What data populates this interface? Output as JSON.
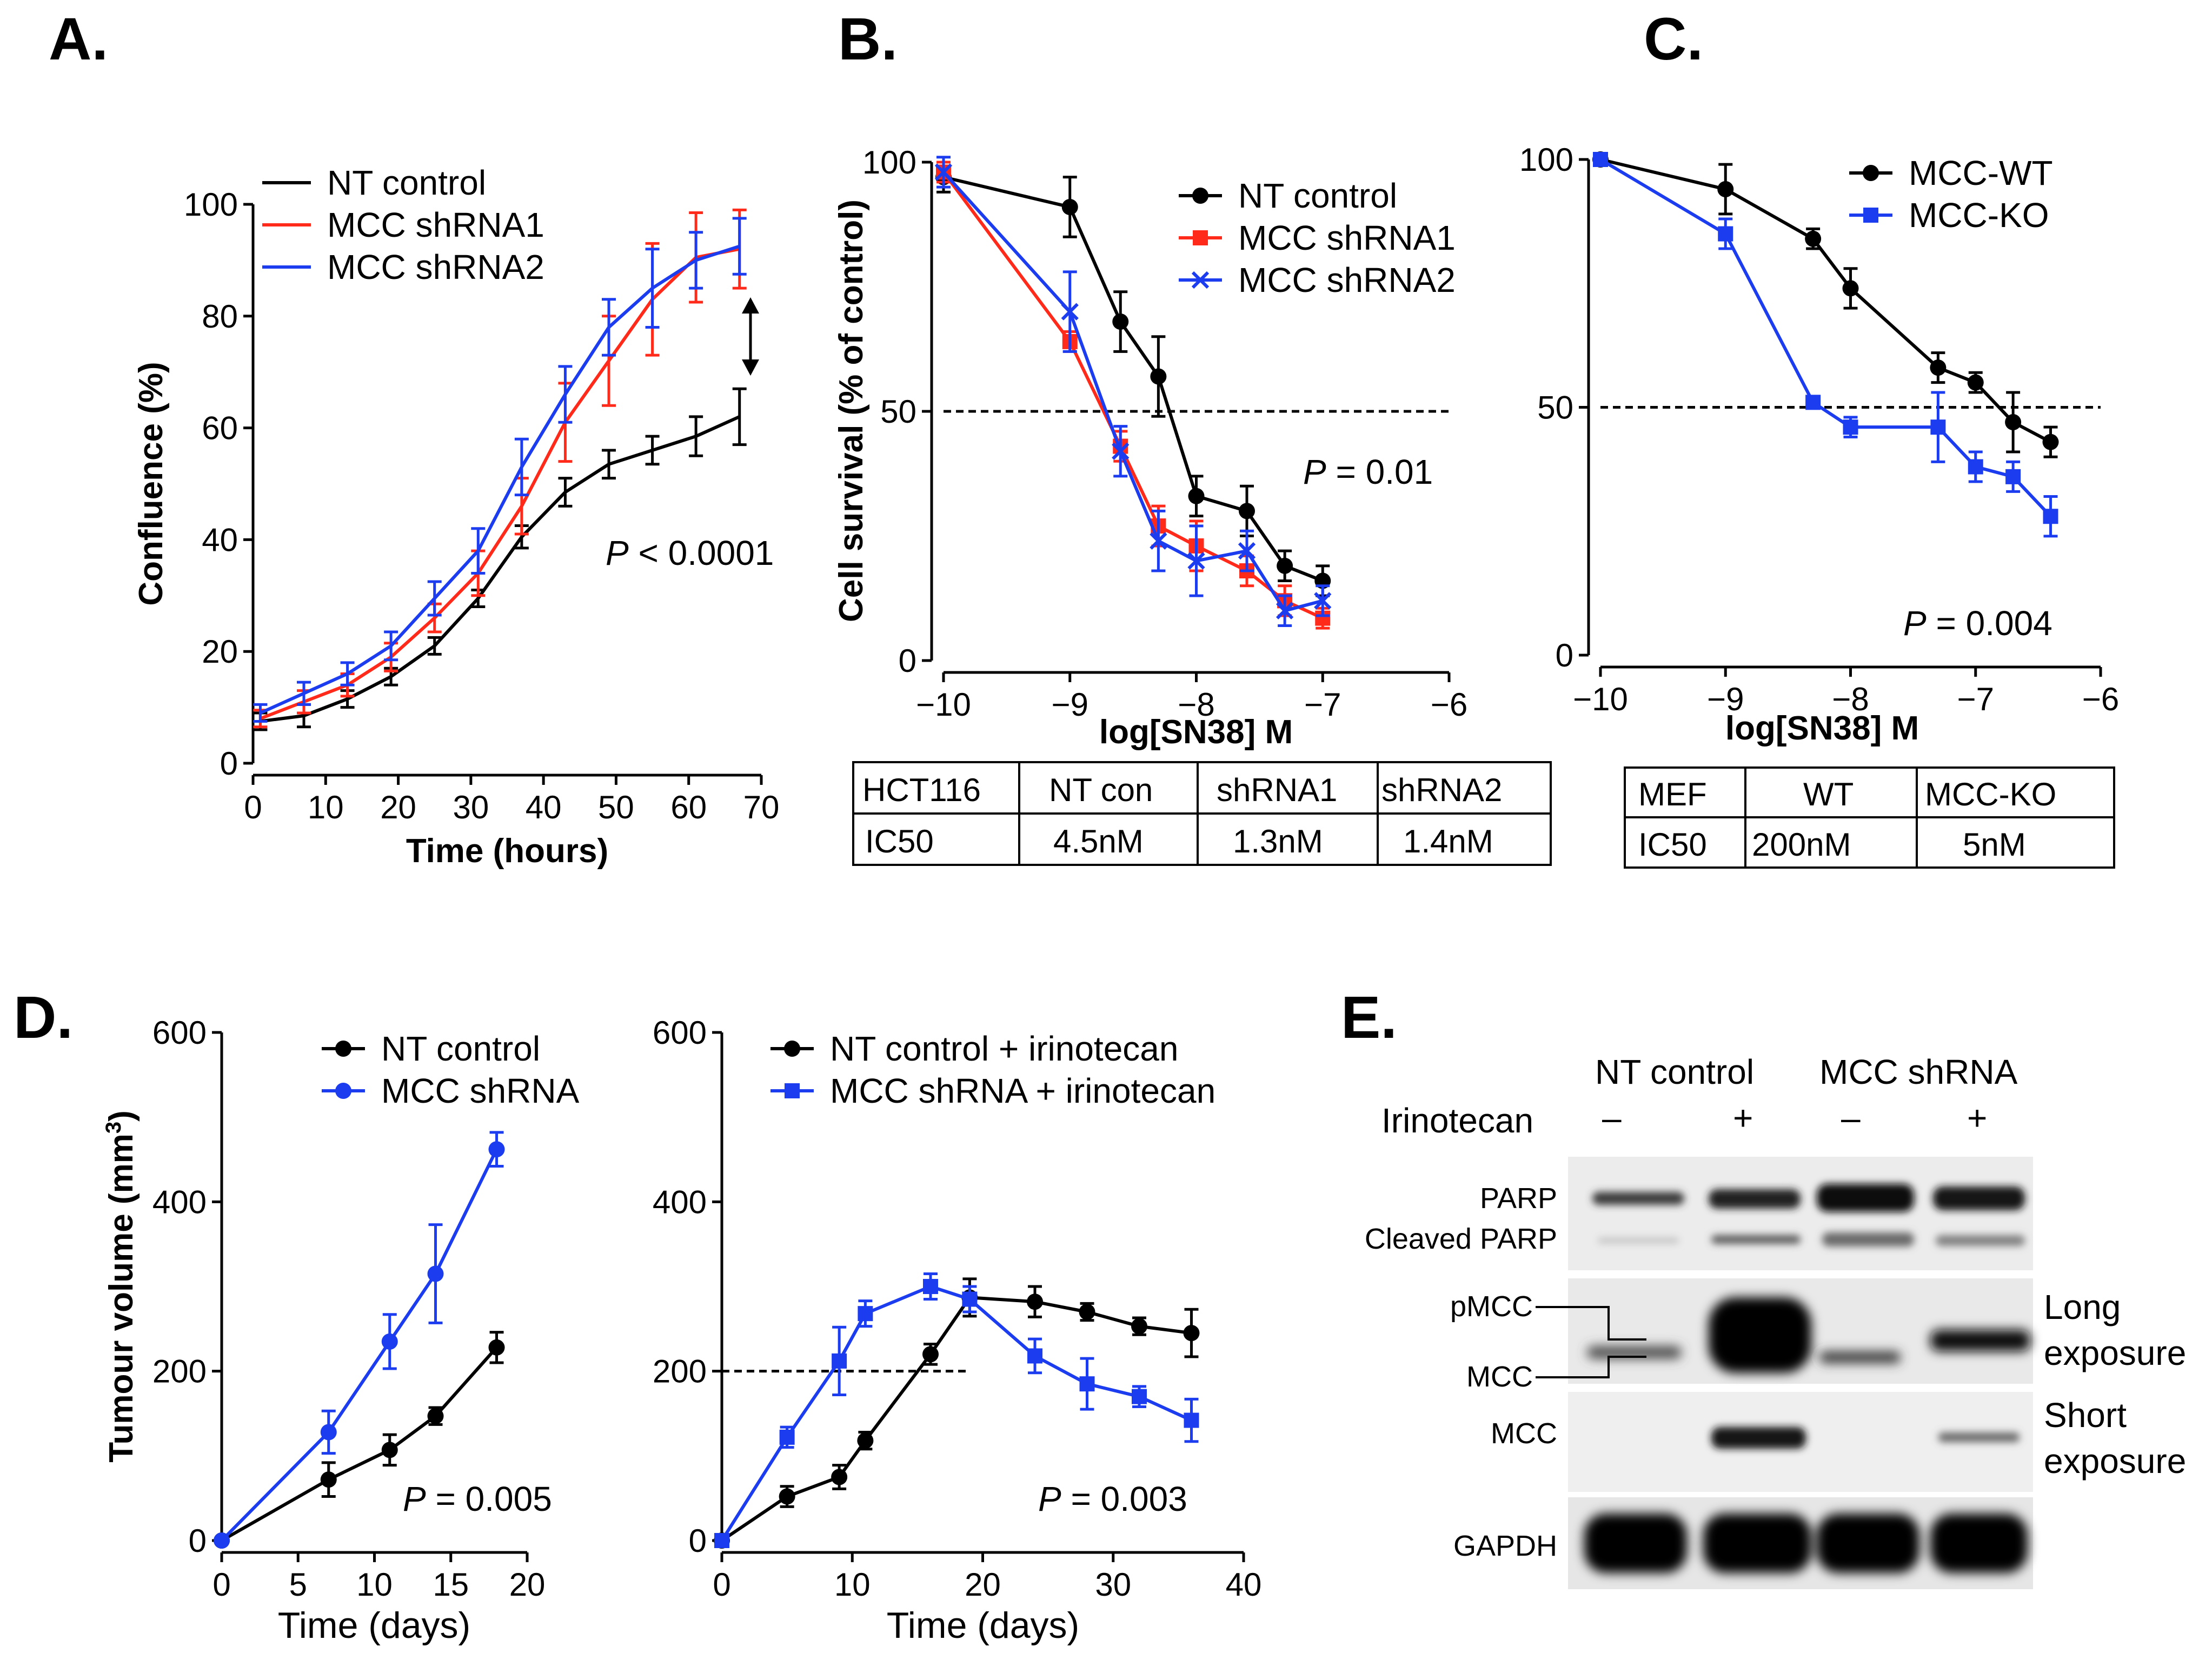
{
  "panel_labels": [
    "A.",
    "B.",
    "C.",
    "D.",
    "E."
  ],
  "chart_data": [
    {
      "id": "A",
      "type": "line",
      "xlabel": "Time (hours)",
      "ylabel": "Confluence (%)",
      "xlim": [
        0,
        70
      ],
      "ylim": [
        0,
        100
      ],
      "xticks": [
        0,
        10,
        20,
        30,
        40,
        50,
        60,
        70
      ],
      "yticks": [
        0,
        20,
        40,
        60,
        80,
        100
      ],
      "pvalue": {
        "italic": "P",
        "text": " < 0.0001"
      },
      "series": [
        {
          "name": "NT control",
          "color": "#000000",
          "marker": "none",
          "x": [
            1,
            7,
            13,
            19,
            25,
            31,
            37,
            43,
            49,
            55,
            61,
            67
          ],
          "y": [
            7.5,
            8.5,
            11.5,
            15.5,
            21,
            29.5,
            40.5,
            48.5,
            53.5,
            56,
            58.5,
            62
          ],
          "err": [
            1.5,
            2,
            1.5,
            1.5,
            1.5,
            1.5,
            2,
            2.5,
            2.5,
            2.5,
            3.5,
            5
          ]
        },
        {
          "name": "MCC shRNA1",
          "color": "#ff2a1a",
          "marker": "none",
          "x": [
            1,
            7,
            13,
            19,
            25,
            31,
            37,
            43,
            49,
            55,
            61,
            67
          ],
          "y": [
            8,
            11,
            14,
            19,
            26,
            34,
            46,
            61,
            72,
            83,
            90.5,
            92
          ],
          "err": [
            1.5,
            2,
            2,
            2.5,
            2.5,
            4,
            5,
            7,
            8,
            10,
            8,
            7
          ]
        },
        {
          "name": "MCC shRNA2",
          "color": "#1c3cf0",
          "marker": "none",
          "x": [
            1,
            7,
            13,
            19,
            25,
            31,
            37,
            43,
            49,
            55,
            61,
            67
          ],
          "y": [
            9,
            12.5,
            16,
            21,
            29.5,
            38,
            53,
            66,
            78,
            85,
            90,
            92.5
          ],
          "err": [
            1.5,
            2,
            2,
            2.5,
            3,
            4,
            5,
            5,
            5,
            7,
            5,
            5
          ]
        }
      ]
    },
    {
      "id": "B",
      "type": "line",
      "xlabel": "log[SN38] M",
      "ylabel": "Cell survival (% of control)",
      "xlim": [
        -10,
        -6
      ],
      "ylim": [
        0,
        100
      ],
      "xticks": [
        -10,
        -9,
        -8,
        -7,
        -6
      ],
      "xtick_labels": [
        "−10",
        "−9",
        "−8",
        "−7",
        "−6"
      ],
      "yticks": [
        0,
        50,
        100
      ],
      "hline": 50,
      "pvalue": {
        "italic": "P",
        "text": " = 0.01"
      },
      "series": [
        {
          "name": "NT control",
          "color": "#000000",
          "marker": "circle",
          "x": [
            -10,
            -9,
            -8.6,
            -8.3,
            -8,
            -7.6,
            -7.3,
            -7
          ],
          "y": [
            97,
            91,
            68,
            57,
            33,
            30,
            19,
            16
          ],
          "err": [
            3,
            6,
            6,
            8,
            4,
            5,
            3,
            3
          ]
        },
        {
          "name": "MCC shRNA1",
          "color": "#ff2a1a",
          "marker": "square",
          "x": [
            -10,
            -9,
            -8.6,
            -8.3,
            -8,
            -7.6,
            -7.3,
            -7
          ],
          "y": [
            98,
            64,
            43,
            27,
            23,
            18,
            12,
            8.5
          ],
          "err": [
            2,
            2,
            3,
            4,
            5,
            3,
            3,
            2
          ]
        },
        {
          "name": "MCC shRNA2",
          "color": "#1c3cf0",
          "marker": "x",
          "x": [
            -10,
            -9,
            -8.6,
            -8.3,
            -8,
            -7.6,
            -7.3,
            -7
          ],
          "y": [
            98,
            70,
            42,
            24,
            20,
            22,
            10,
            12
          ],
          "err": [
            3,
            8,
            5,
            6,
            7,
            4,
            3,
            3
          ]
        }
      ],
      "table": {
        "header": [
          "HCT116",
          "NT con",
          "shRNA1",
          "shRNA2"
        ],
        "row": [
          "IC50",
          "4.5nM",
          "1.3nM",
          "1.4nM"
        ]
      }
    },
    {
      "id": "C",
      "type": "line",
      "xlabel": "log[SN38] M",
      "ylabel": "",
      "xlim": [
        -10,
        -6
      ],
      "ylim": [
        0,
        100
      ],
      "xticks": [
        -10,
        -9,
        -8,
        -7,
        -6
      ],
      "xtick_labels": [
        "−10",
        "−9",
        "−8",
        "−7",
        "−6"
      ],
      "yticks": [
        0,
        50,
        100
      ],
      "hline": 50,
      "pvalue": {
        "italic": "P",
        "text": " = 0.004"
      },
      "series": [
        {
          "name": "MCC-WT",
          "color": "#000000",
          "marker": "circle",
          "x": [
            -10,
            -9,
            -8.3,
            -8,
            -7.3,
            -7,
            -6.7,
            -6.4
          ],
          "y": [
            100,
            94,
            84,
            74,
            58,
            55,
            47,
            43
          ],
          "err": [
            1,
            5,
            2,
            4,
            3,
            2,
            6,
            3
          ]
        },
        {
          "name": "MCC-KO",
          "color": "#1c3cf0",
          "marker": "square",
          "x": [
            -10,
            -9,
            -8.3,
            -8,
            -7.3,
            -7,
            -6.7,
            -6.4
          ],
          "y": [
            100,
            85,
            51,
            46,
            46,
            38,
            36,
            28
          ],
          "err": [
            1,
            3,
            1,
            2,
            7,
            3,
            3,
            4
          ]
        }
      ],
      "table": {
        "header": [
          "MEF",
          "WT",
          "MCC-KO"
        ],
        "row": [
          "IC50",
          "200nM",
          "5nM"
        ]
      }
    },
    {
      "id": "D-left",
      "type": "line",
      "xlabel": "Time (days)",
      "ylabel": "Tumour volume (mm",
      "ylabel_sup": "3",
      "ylabel_close": ")",
      "xlim": [
        0,
        20
      ],
      "ylim": [
        0,
        600
      ],
      "xticks": [
        0,
        5,
        10,
        15,
        20
      ],
      "yticks": [
        0,
        200,
        400,
        600
      ],
      "pvalue": {
        "italic": "P",
        "text": " = 0.005"
      },
      "series": [
        {
          "name": "NT control",
          "color": "#000000",
          "marker": "circle",
          "x": [
            0,
            7,
            11,
            14,
            18
          ],
          "y": [
            0,
            72,
            107,
            147,
            228
          ],
          "err": [
            0,
            20,
            18,
            10,
            18
          ]
        },
        {
          "name": "MCC shRNA",
          "color": "#1c3cf0",
          "marker": "circle",
          "x": [
            0,
            7,
            11,
            14,
            18
          ],
          "y": [
            0,
            128,
            235,
            315,
            462
          ],
          "err": [
            0,
            25,
            32,
            58,
            20
          ]
        }
      ]
    },
    {
      "id": "D-right",
      "type": "line",
      "xlabel": "Time (days)",
      "ylabel": "",
      "xlim": [
        0,
        40
      ],
      "ylim": [
        0,
        600
      ],
      "xticks": [
        0,
        10,
        20,
        30,
        40
      ],
      "yticks": [
        0,
        200,
        400,
        600
      ],
      "hline": 200,
      "pvalue": {
        "italic": "P",
        "text": " = 0.003"
      },
      "series": [
        {
          "name": "NT control + irinotecan",
          "color": "#000000",
          "marker": "circle",
          "x": [
            0,
            5,
            9,
            11,
            16,
            19,
            24,
            28,
            32,
            36
          ],
          "y": [
            0,
            52,
            75,
            118,
            220,
            287,
            282,
            270,
            253,
            245
          ],
          "err": [
            0,
            12,
            14,
            10,
            12,
            22,
            18,
            10,
            10,
            28
          ]
        },
        {
          "name": "MCC shRNA + irinotecan",
          "color": "#1c3cf0",
          "marker": "square",
          "x": [
            0,
            5,
            9,
            11,
            16,
            19,
            24,
            28,
            32,
            36
          ],
          "y": [
            0,
            122,
            212,
            268,
            300,
            285,
            218,
            185,
            170,
            142
          ],
          "err": [
            0,
            12,
            40,
            15,
            15,
            15,
            20,
            30,
            12,
            25
          ]
        }
      ]
    }
  ],
  "panel_e": {
    "groups": [
      "NT control",
      "MCC shRNA"
    ],
    "treatment_label": "Irinotecan",
    "lane_signs": [
      "–",
      "+",
      "–",
      "+"
    ],
    "blots": {
      "parp": {
        "label1": "PARP",
        "label2": "Cleaved PARP"
      },
      "mcc_long": {
        "label1": "pMCC",
        "label2": "MCC",
        "side1": "Long",
        "side2": "exposure"
      },
      "mcc_short": {
        "label": "MCC",
        "side1": "Short",
        "side2": "exposure"
      },
      "gapdh": {
        "label": "GAPDH"
      }
    }
  }
}
